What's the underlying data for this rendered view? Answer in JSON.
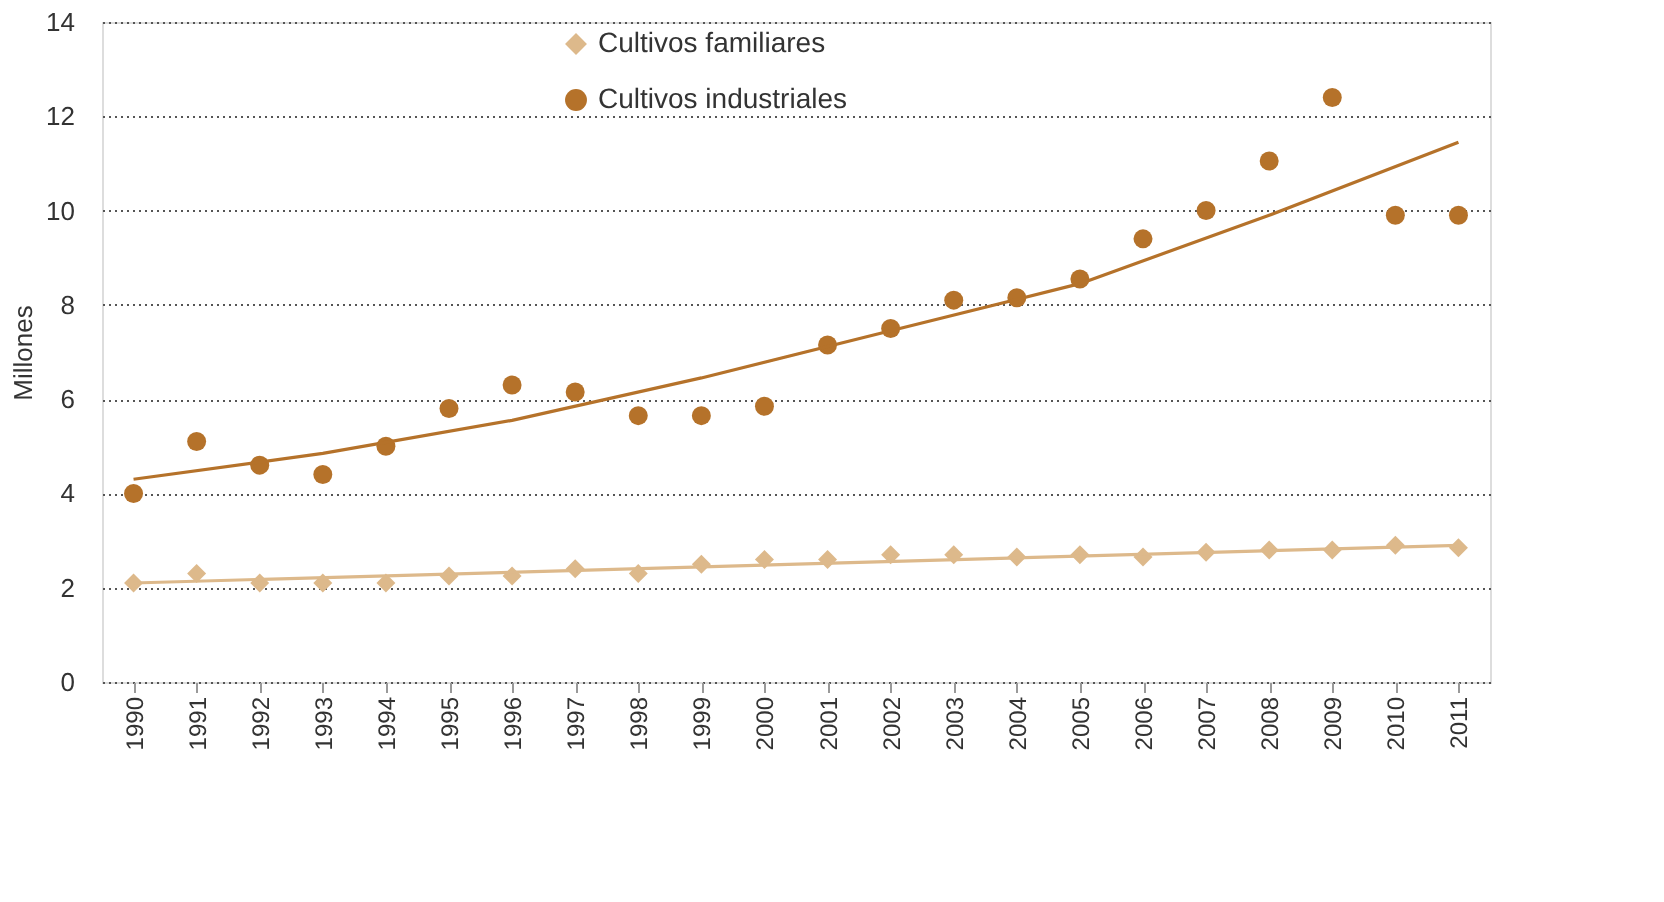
{
  "chart_data": {
    "type": "scatter",
    "ylabel": "Millones",
    "x": [
      1990,
      1991,
      1992,
      1993,
      1994,
      1995,
      1996,
      1997,
      1998,
      1999,
      2000,
      2001,
      2002,
      2003,
      2004,
      2005,
      2006,
      2007,
      2008,
      2009,
      2010,
      2011
    ],
    "series": [
      {
        "name": "Cultivos familiares",
        "color": "#ddb98b",
        "marker": "diamond",
        "values": [
          2.1,
          2.3,
          2.1,
          2.1,
          2.1,
          2.25,
          2.25,
          2.4,
          2.3,
          2.5,
          2.6,
          2.6,
          2.7,
          2.7,
          2.65,
          2.7,
          2.65,
          2.75,
          2.8,
          2.8,
          2.9,
          2.85
        ]
      },
      {
        "name": "Cultivos industriales",
        "color": "#b5722a",
        "marker": "circle",
        "values": [
          4.0,
          5.1,
          4.6,
          4.4,
          5.0,
          5.8,
          6.3,
          6.15,
          5.65,
          5.65,
          5.85,
          7.15,
          7.5,
          8.1,
          8.15,
          8.55,
          9.4,
          10.0,
          11.05,
          12.4,
          9.9,
          9.9
        ]
      },
      {
        "type": "line",
        "color": "#ddb98b",
        "x": [
          1990,
          2011
        ],
        "values": [
          2.1,
          2.9
        ]
      },
      {
        "type": "line",
        "color": "#b5722a",
        "x": [
          1990,
          1993,
          1996,
          1999,
          2002,
          2005,
          2008,
          2011
        ],
        "values": [
          4.3,
          4.85,
          5.55,
          6.45,
          7.45,
          8.45,
          9.9,
          11.45
        ]
      }
    ],
    "xlim": [
      1989.5,
      2011.5
    ],
    "xticks": [
      1990,
      1991,
      1992,
      1993,
      1994,
      1995,
      1996,
      1997,
      1998,
      1999,
      2000,
      2001,
      2002,
      2003,
      2004,
      2005,
      2006,
      2007,
      2008,
      2009,
      2010,
      2011
    ],
    "ylim": [
      0,
      14
    ],
    "yticks": [
      0,
      2,
      4,
      6,
      8,
      10,
      12,
      14
    ],
    "grid": "y",
    "legend": "top left"
  }
}
